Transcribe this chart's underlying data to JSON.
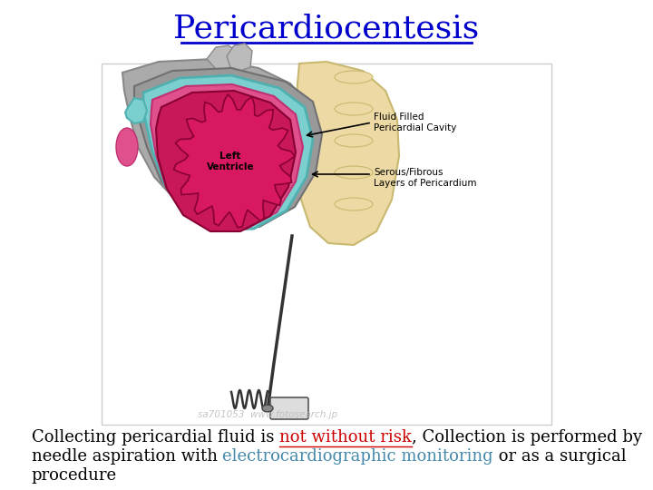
{
  "title": "Pericardiocentesis",
  "title_color": "#0000CC",
  "title_fontsize": 26,
  "bg_color": "#FFFFFF",
  "text_fontsize": 13,
  "line1_parts": [
    {
      "text": "Collecting pericardial fluid is ",
      "color": "#000000",
      "underline": false
    },
    {
      "text": "not without risk",
      "color": "#CC0000",
      "underline": true
    },
    {
      "text": ", Collection is performed by",
      "color": "#000000",
      "underline": false
    }
  ],
  "line2_parts": [
    {
      "text": "needle aspiration with ",
      "color": "#000000",
      "underline": false
    },
    {
      "text": "electrocardiographic monitoring",
      "color": "#4488AA",
      "underline": false
    },
    {
      "text": " or as a surgical",
      "color": "#000000",
      "underline": false
    }
  ],
  "line3_parts": [
    {
      "text": "procedure",
      "color": "#000000",
      "underline": false
    }
  ],
  "watermark": "sa701053  www.fotosearch.jp"
}
